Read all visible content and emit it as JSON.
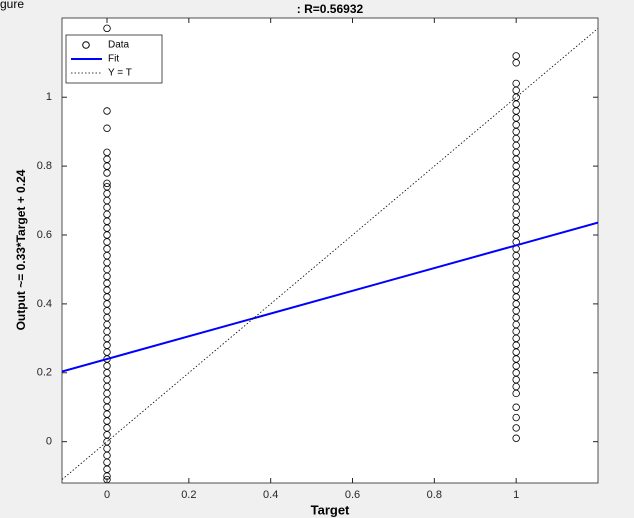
{
  "window_fragment": "gure",
  "chart_data": {
    "type": "scatter",
    "title": ": R=0.56932",
    "xlabel": "Target",
    "ylabel": "Output ~= 0.33*Target + 0.24",
    "xlim": [
      -0.11,
      1.2
    ],
    "ylim": [
      -0.12,
      1.23
    ],
    "xticks": [
      0,
      0.2,
      0.4,
      0.6,
      0.8,
      1
    ],
    "yticks": [
      0,
      0.2,
      0.4,
      0.6,
      0.8,
      1
    ],
    "grid": false,
    "legend": "upper left",
    "series": [
      {
        "name": "Data",
        "color": "#000000",
        "marker": "o",
        "x": [
          0,
          0,
          0,
          0,
          0,
          0,
          0,
          0,
          0,
          0,
          0,
          0,
          0,
          0,
          0,
          0,
          0,
          0,
          0,
          0,
          0,
          0,
          0,
          0,
          0,
          0,
          0,
          0,
          0,
          0,
          0,
          0,
          0,
          0,
          0,
          0,
          0,
          0,
          0,
          0,
          0,
          0,
          0,
          0,
          0,
          0,
          0,
          0,
          0,
          0,
          0,
          0,
          1,
          1,
          1,
          1,
          1,
          1,
          1,
          1,
          1,
          1,
          1,
          1,
          1,
          1,
          1,
          1,
          1,
          1,
          1,
          1,
          1,
          1,
          1,
          1,
          1,
          1,
          1,
          1,
          1,
          1,
          1,
          1,
          1,
          1,
          1,
          1,
          1,
          1,
          1,
          1,
          1,
          1,
          1,
          1,
          1,
          1,
          1,
          1,
          1,
          1,
          1,
          1
        ],
        "y": [
          1.2,
          0.96,
          0.91,
          0.84,
          0.82,
          0.8,
          0.78,
          0.75,
          0.74,
          0.72,
          0.7,
          0.68,
          0.66,
          0.64,
          0.62,
          0.6,
          0.58,
          0.56,
          0.54,
          0.52,
          0.5,
          0.48,
          0.46,
          0.44,
          0.42,
          0.4,
          0.38,
          0.36,
          0.34,
          0.32,
          0.3,
          0.28,
          0.26,
          0.24,
          0.22,
          0.2,
          0.18,
          0.16,
          0.14,
          0.12,
          0.1,
          0.08,
          0.06,
          0.04,
          0.02,
          0,
          -0.02,
          -0.04,
          -0.06,
          -0.08,
          -0.1,
          -0.11,
          1.12,
          1.1,
          1.04,
          1.02,
          1,
          0.98,
          0.96,
          0.94,
          0.92,
          0.9,
          0.88,
          0.86,
          0.84,
          0.82,
          0.8,
          0.78,
          0.76,
          0.74,
          0.72,
          0.7,
          0.68,
          0.66,
          0.64,
          0.62,
          0.6,
          0.58,
          0.56,
          0.54,
          0.52,
          0.5,
          0.48,
          0.46,
          0.44,
          0.42,
          0.4,
          0.38,
          0.36,
          0.34,
          0.32,
          0.3,
          0.28,
          0.26,
          0.24,
          0.22,
          0.2,
          0.18,
          0.16,
          0.14,
          0.1,
          0.07,
          0.04,
          0.01
        ]
      },
      {
        "name": "Fit",
        "color": "#0000ff",
        "line_style": "solid",
        "x": [
          -0.11,
          1.2
        ],
        "y": [
          0.2037,
          0.636
        ]
      },
      {
        "name": "Y = T",
        "color": "#000000",
        "line_style": "dotted",
        "x": [
          -0.11,
          1.2
        ],
        "y": [
          -0.11,
          1.2
        ]
      }
    ]
  }
}
